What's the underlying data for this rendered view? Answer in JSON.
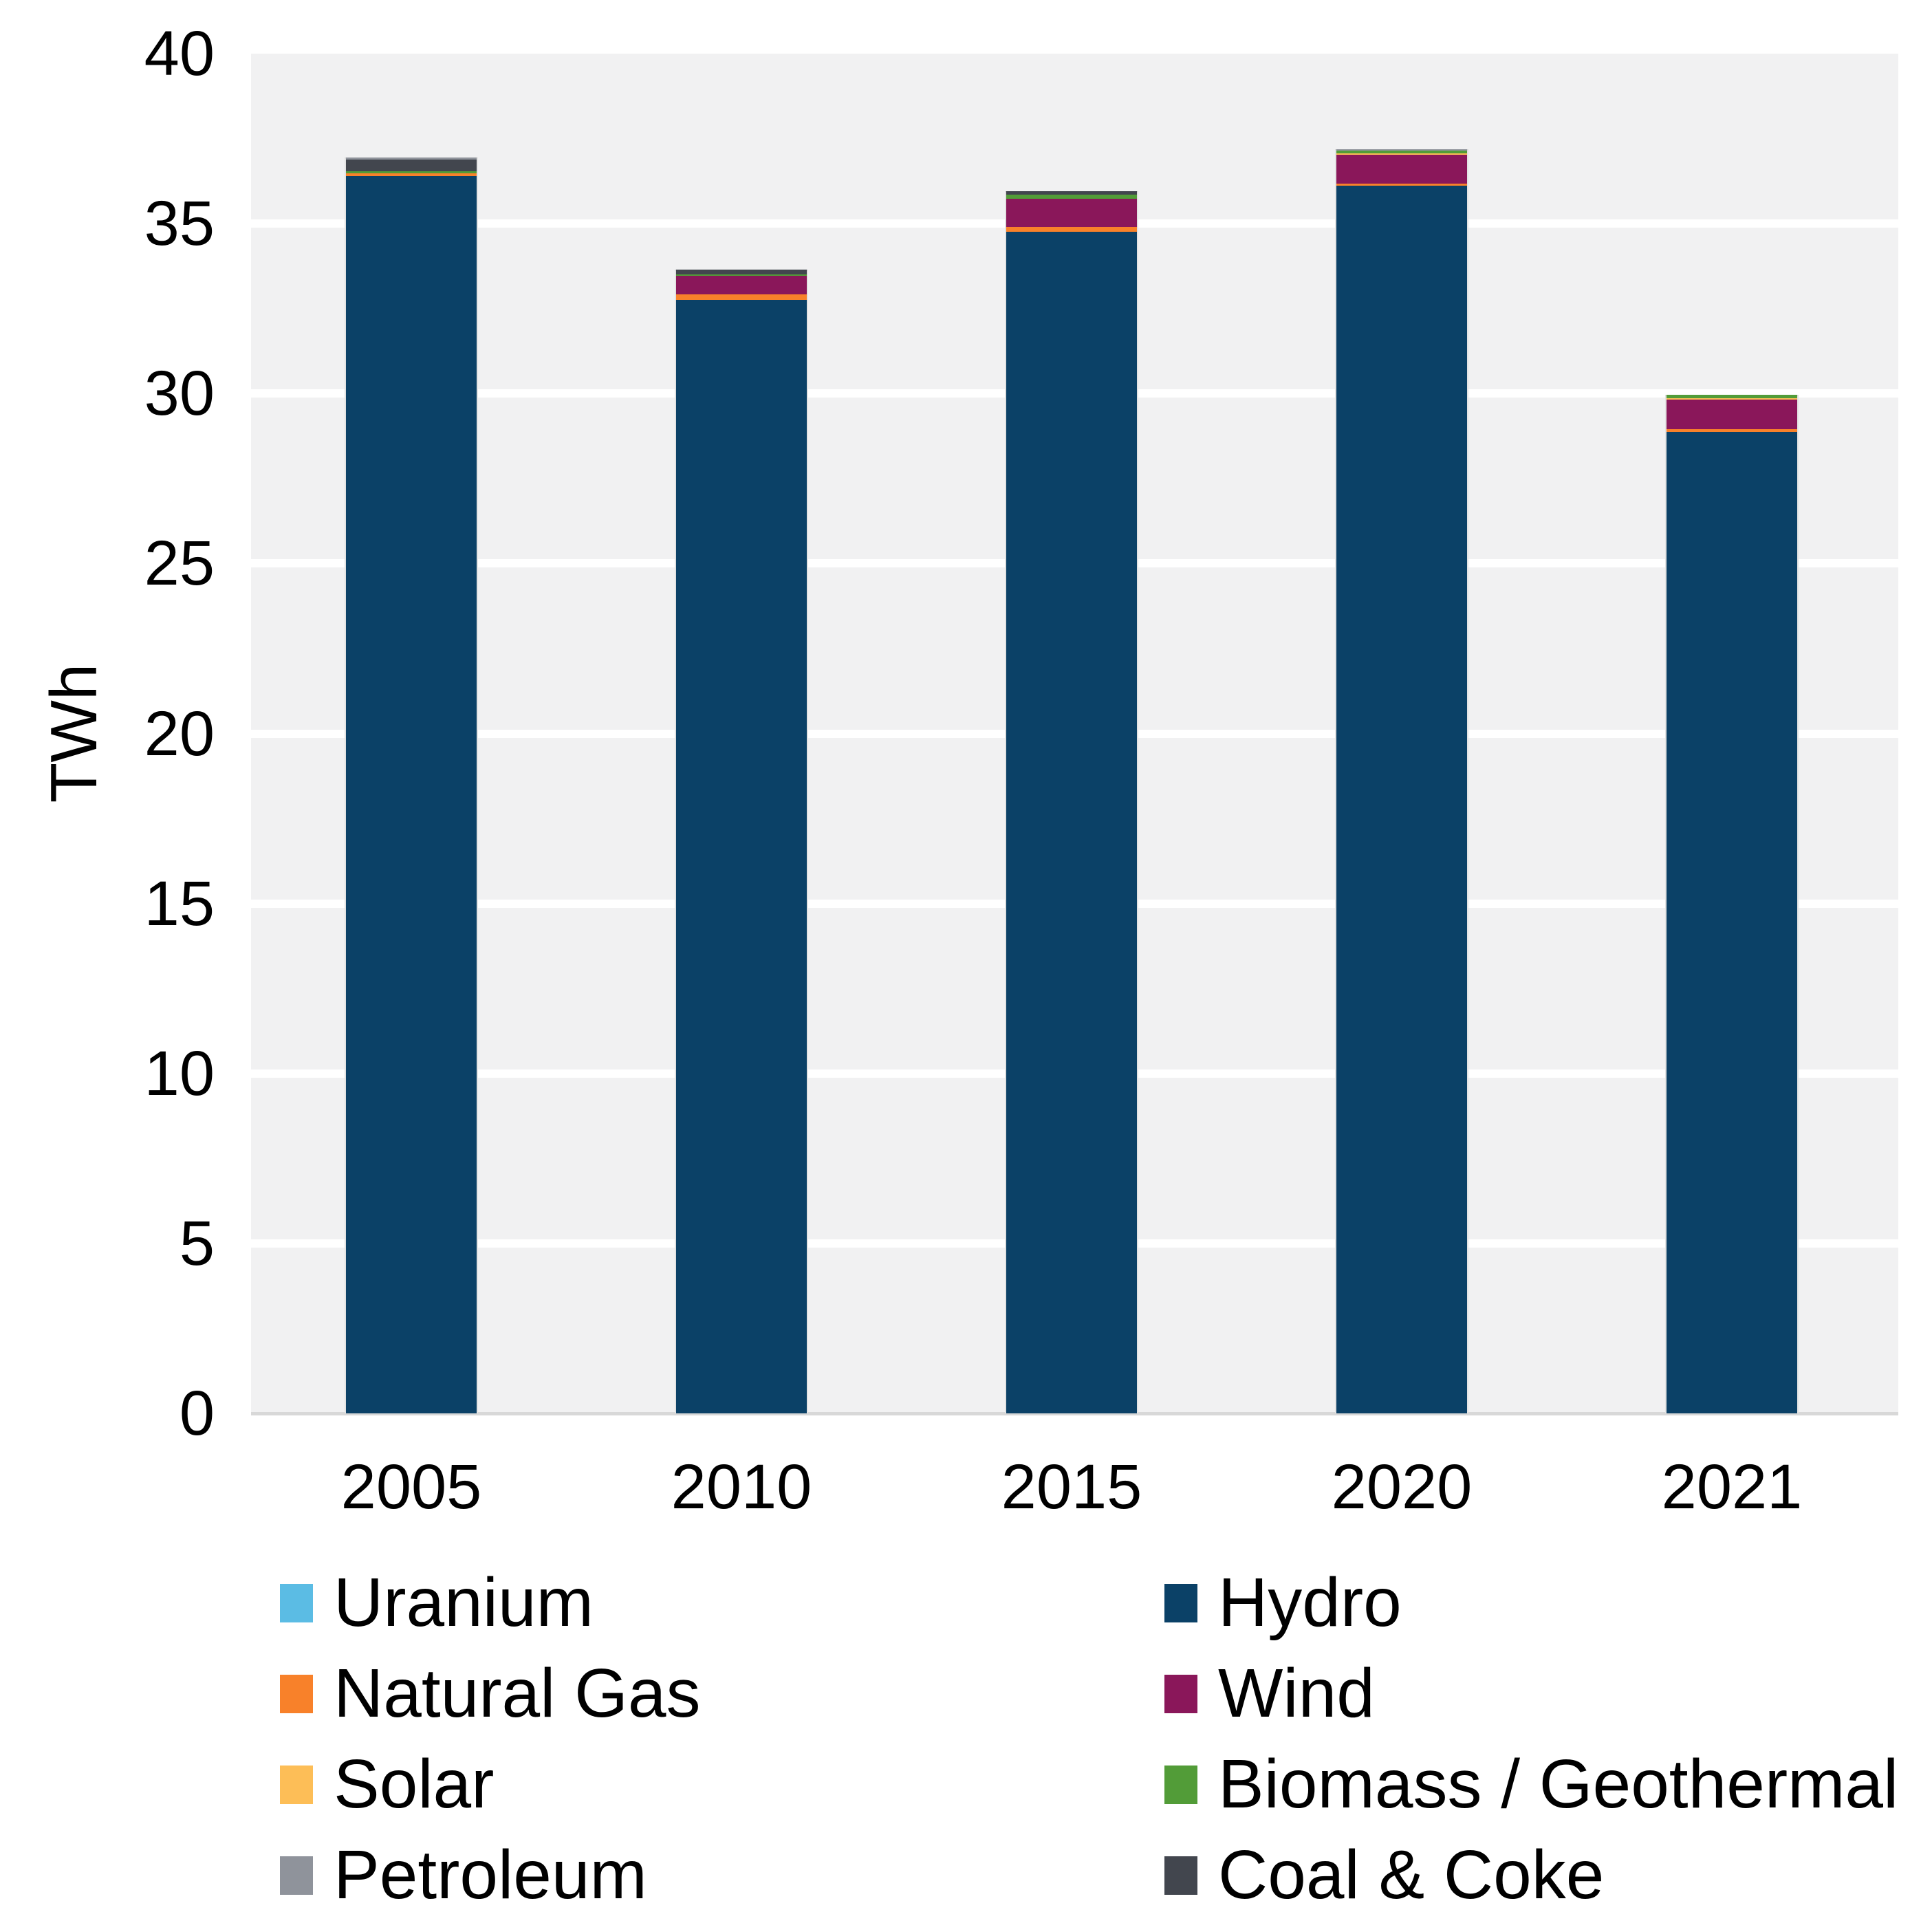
{
  "chart": {
    "y_axis_label": "TWh"
  },
  "chart_data": {
    "type": "bar",
    "stacked": true,
    "title": "",
    "xlabel": "",
    "ylabel": "TWh",
    "categories": [
      "2005",
      "2010",
      "2015",
      "2020",
      "2021"
    ],
    "series": [
      {
        "name": "Uranium",
        "color": "#5bbce4",
        "values": [
          0,
          0,
          0,
          0,
          0
        ]
      },
      {
        "name": "Hydro",
        "color": "#0b4167",
        "values": [
          36.4,
          32.75,
          34.77,
          36.12,
          28.87
        ]
      },
      {
        "name": "Natural Gas",
        "color": "#f8812a",
        "values": [
          0.07,
          0.17,
          0.13,
          0.05,
          0.08
        ]
      },
      {
        "name": "Wind",
        "color": "#8a175a",
        "values": [
          0,
          0.55,
          0.84,
          0.86,
          0.87
        ]
      },
      {
        "name": "Solar",
        "color": "#fdbe57",
        "values": [
          0,
          0,
          0,
          0.03,
          0.05
        ]
      },
      {
        "name": "Biomass / Geothermal",
        "color": "#529c38",
        "values": [
          0.07,
          0.04,
          0.12,
          0.09,
          0.09
        ]
      },
      {
        "name": "Coal & Coke",
        "color": "#42464e",
        "values": [
          0.34,
          0.13,
          0.09,
          0,
          0
        ]
      },
      {
        "name": "Petroleum",
        "color": "#8f939b",
        "values": [
          0.07,
          0,
          0,
          0.04,
          0
        ]
      }
    ],
    "totals_approx": [
      36.95,
      33.64,
      35.95,
      37.19,
      29.96
    ],
    "stack_order_bottom_to_top": [
      "Uranium",
      "Hydro",
      "Natural Gas",
      "Wind",
      "Solar",
      "Biomass / Geothermal",
      "Coal & Coke",
      "Petroleum"
    ],
    "ylim": [
      0,
      40
    ],
    "yticks": [
      0,
      5,
      10,
      15,
      20,
      25,
      30,
      35,
      40
    ],
    "grid": "horizontal white gridlines on light gray plot background",
    "legend_position": "bottom-two-columns"
  },
  "legend": {
    "columns": [
      {
        "items": [
          {
            "label": "Uranium",
            "color": "#5bbce4"
          },
          {
            "label": "Natural Gas",
            "color": "#f8812a"
          },
          {
            "label": "Solar",
            "color": "#fdbe57"
          },
          {
            "label": "Petroleum",
            "color": "#8f939b"
          }
        ]
      },
      {
        "items": [
          {
            "label": "Hydro",
            "color": "#0b4167"
          },
          {
            "label": "Wind",
            "color": "#8a175a"
          },
          {
            "label": "Biomass / Geothermal",
            "color": "#529c38"
          },
          {
            "label": "Coal & Coke",
            "color": "#42464e"
          }
        ]
      }
    ]
  },
  "colors": {
    "plot_background": "#f1f1f2",
    "gridline": "#ffffff",
    "axis_line": "#d8d8d8",
    "text": "#000000",
    "page_background": "#ffffff"
  }
}
